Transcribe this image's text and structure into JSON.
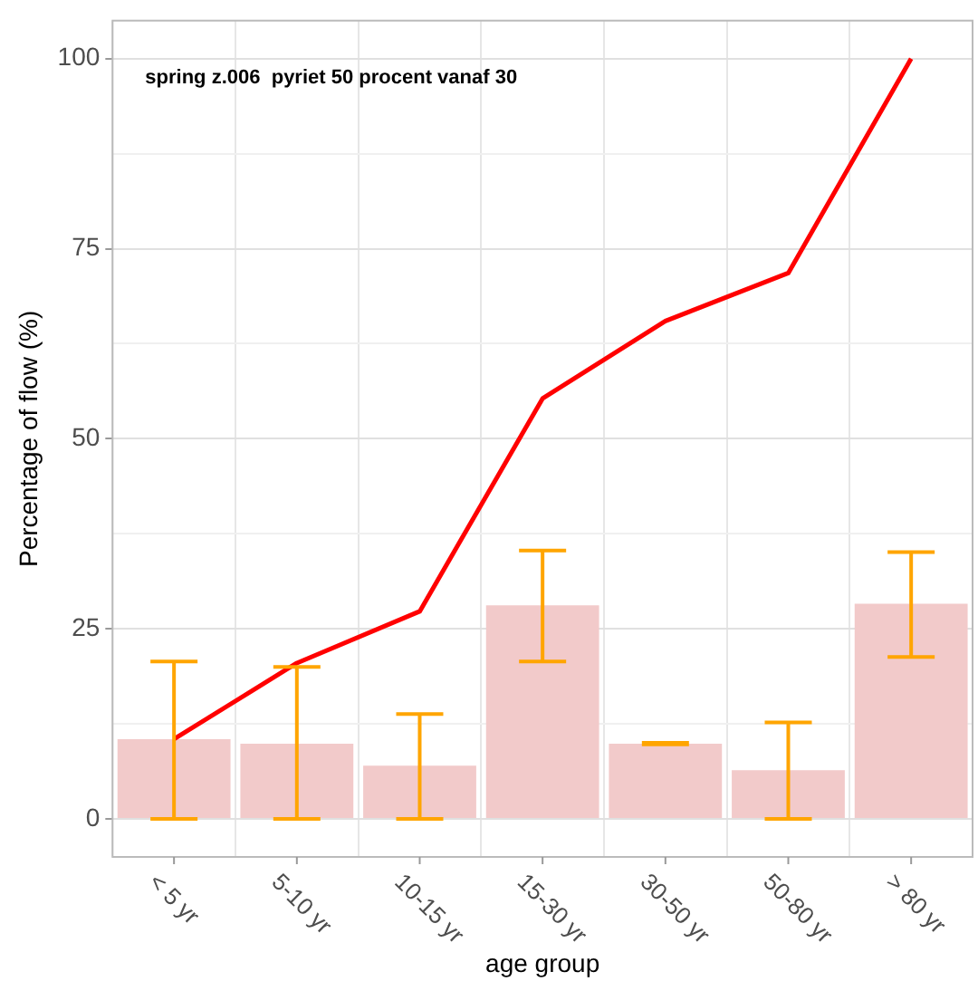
{
  "chart_data": {
    "type": "bar",
    "xlabel": "age group",
    "ylabel": "Percentage of flow (%)",
    "annotations": [
      "spring z.006  pyriet 50 procent vanaf 30"
    ],
    "categories": [
      "< 5 yr",
      "5-10 yr",
      "10-15 yr",
      "15-30 yr",
      "30-50 yr",
      "50-80 yr",
      "> 80 yr"
    ],
    "series": [
      {
        "color": "#f2caca",
        "values": [
          10.5,
          9.9,
          7.0,
          28.1,
          9.9,
          6.4,
          28.3
        ],
        "errors": [
          [
            0,
            20.7
          ],
          [
            0,
            20.0
          ],
          [
            0,
            13.8
          ],
          [
            20.7,
            35.3
          ],
          [
            9.8,
            10.0
          ],
          [
            0,
            12.7
          ],
          [
            21.3,
            35.1
          ]
        ]
      },
      {
        "type": "line",
        "color": "#ff0000",
        "values": [
          10.5,
          20.5,
          27.3,
          55.3,
          65.5,
          71.8,
          100
        ],
        "marker": "none"
      }
    ],
    "ylim": [
      -5,
      105
    ],
    "yticks": [
      0,
      {
        "value": 12.5,
        "label": null
      },
      25,
      {
        "value": 37.5,
        "label": null
      },
      50,
      {
        "value": 62.5,
        "label": null
      },
      75,
      {
        "value": 87.5,
        "label": null
      },
      100
    ],
    "grid": true,
    "legend": false
  }
}
